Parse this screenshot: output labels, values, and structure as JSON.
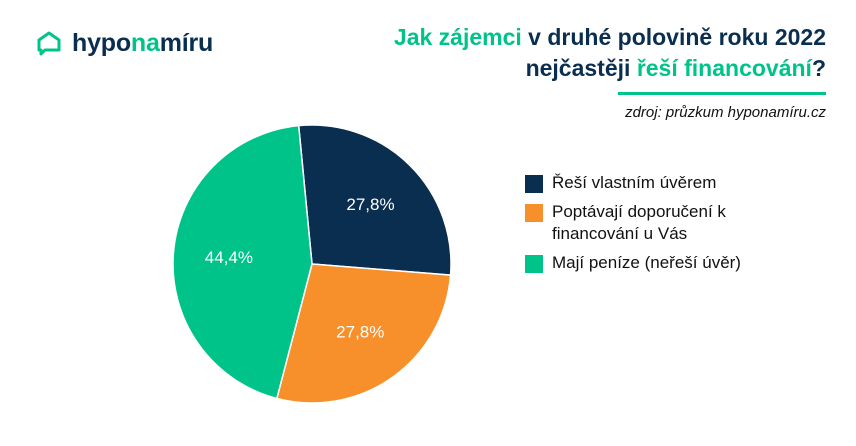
{
  "logo": {
    "text_a": "hypo",
    "text_b": "na",
    "text_c": "míru",
    "icon": "home-chat-icon"
  },
  "title": {
    "line1_accent": "Jak zájemci",
    "line1_rest": " v druhé polovině roku 2022",
    "line2_start": "nejčastěji ",
    "line2_accent": "řeší financování",
    "line2_end": "?"
  },
  "source": "zdroj: průzkum hyponamíru.cz",
  "colors": {
    "navy": "#0a2e4f",
    "orange": "#f7902a",
    "green": "#00c389"
  },
  "chart_data": {
    "type": "pie",
    "title": "Jak zájemci v druhé polovině roku 2022 nejčastěji řeší financování?",
    "unit": "%",
    "slices": [
      {
        "label": "Řeší vlastním úvěrem",
        "value": 27.8,
        "display": "27,8%",
        "color": "#0a2e4f"
      },
      {
        "label": "Poptávají doporučení k financování u Vás",
        "value": 27.8,
        "display": "27,8%",
        "color": "#f7902a"
      },
      {
        "label": "Mají peníze (neřeší úvěr)",
        "value": 44.4,
        "display": "44,4%",
        "color": "#00c389"
      }
    ],
    "legend_position": "right"
  }
}
